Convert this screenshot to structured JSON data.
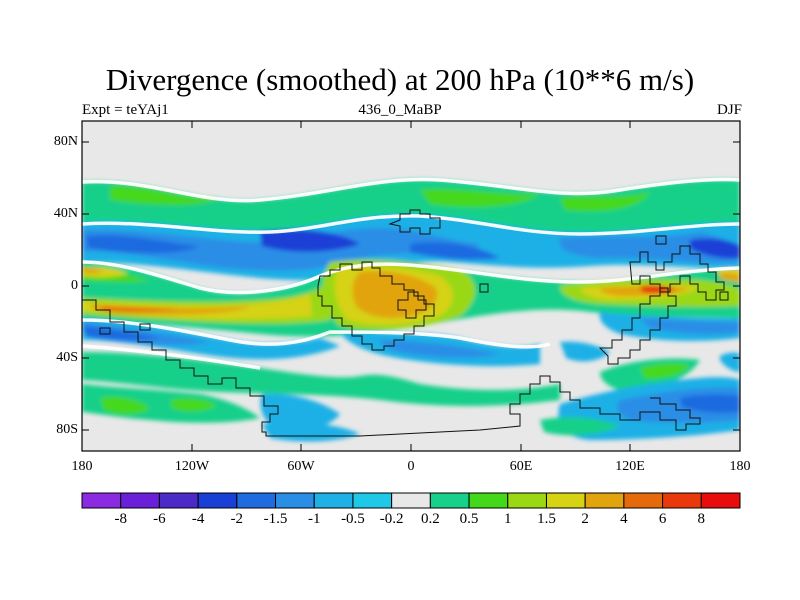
{
  "title": "Divergence (smoothed) at 200 hPa (10**6 m/s)",
  "subtitle_left": "Expt = teYAj1",
  "subtitle_center": "436_0_MaBP",
  "subtitle_right": "DJF",
  "y_ticks": [
    "80N",
    "40N",
    "0",
    "40S",
    "80S"
  ],
  "x_ticks": [
    "180",
    "120W",
    "60W",
    "0",
    "60E",
    "120E",
    "180"
  ],
  "colorbar": {
    "labels": [
      "-8",
      "-6",
      "-4",
      "-2",
      "-1.5",
      "-1",
      "-0.5",
      "-0.2",
      "0.2",
      "0.5",
      "1",
      "1.5",
      "2",
      "4",
      "6",
      "8"
    ],
    "colors": [
      "#8a2be2",
      "#6a1fd8",
      "#4b2ac8",
      "#1a3fd6",
      "#1f6be0",
      "#2a8ee6",
      "#1fb0e6",
      "#20c8e8",
      "#e8e8e8",
      "#19d08a",
      "#44d81a",
      "#9ad814",
      "#d6d214",
      "#e2a40e",
      "#e56a0c",
      "#e8380c",
      "#e80c0c"
    ]
  },
  "colors": {
    "background_field": "#e8e8e8",
    "frame": "#000000",
    "land_outline": "#111111"
  }
}
